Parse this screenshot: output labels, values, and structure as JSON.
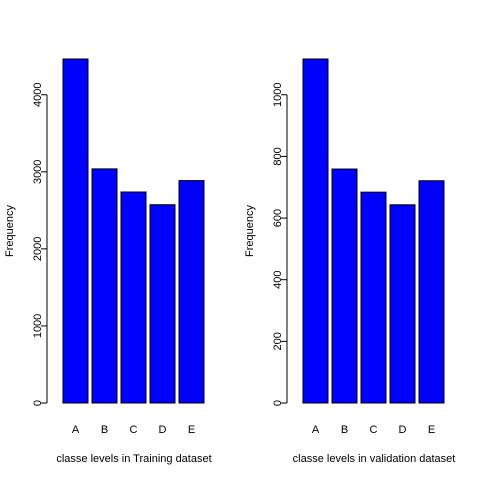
{
  "chart_data": [
    {
      "type": "bar",
      "categories": [
        "A",
        "B",
        "C",
        "D",
        "E"
      ],
      "values": [
        4464,
        3038,
        2738,
        2573,
        2886
      ],
      "title": "",
      "xlabel": "classe levels in Training dataset",
      "ylabel": "Frequency",
      "ylim": [
        0,
        4464
      ],
      "yticks": [
        0,
        1000,
        2000,
        3000,
        4000
      ],
      "bar_color": "#0000ff",
      "grid": false
    },
    {
      "type": "bar",
      "categories": [
        "A",
        "B",
        "C",
        "D",
        "E"
      ],
      "values": [
        1116,
        759,
        684,
        643,
        721
      ],
      "title": "",
      "xlabel": "classe levels in validation dataset",
      "ylabel": "Frequency",
      "ylim": [
        0,
        1116
      ],
      "yticks": [
        0,
        200,
        400,
        600,
        800,
        1000
      ],
      "bar_color": "#0000ff",
      "grid": false
    }
  ]
}
